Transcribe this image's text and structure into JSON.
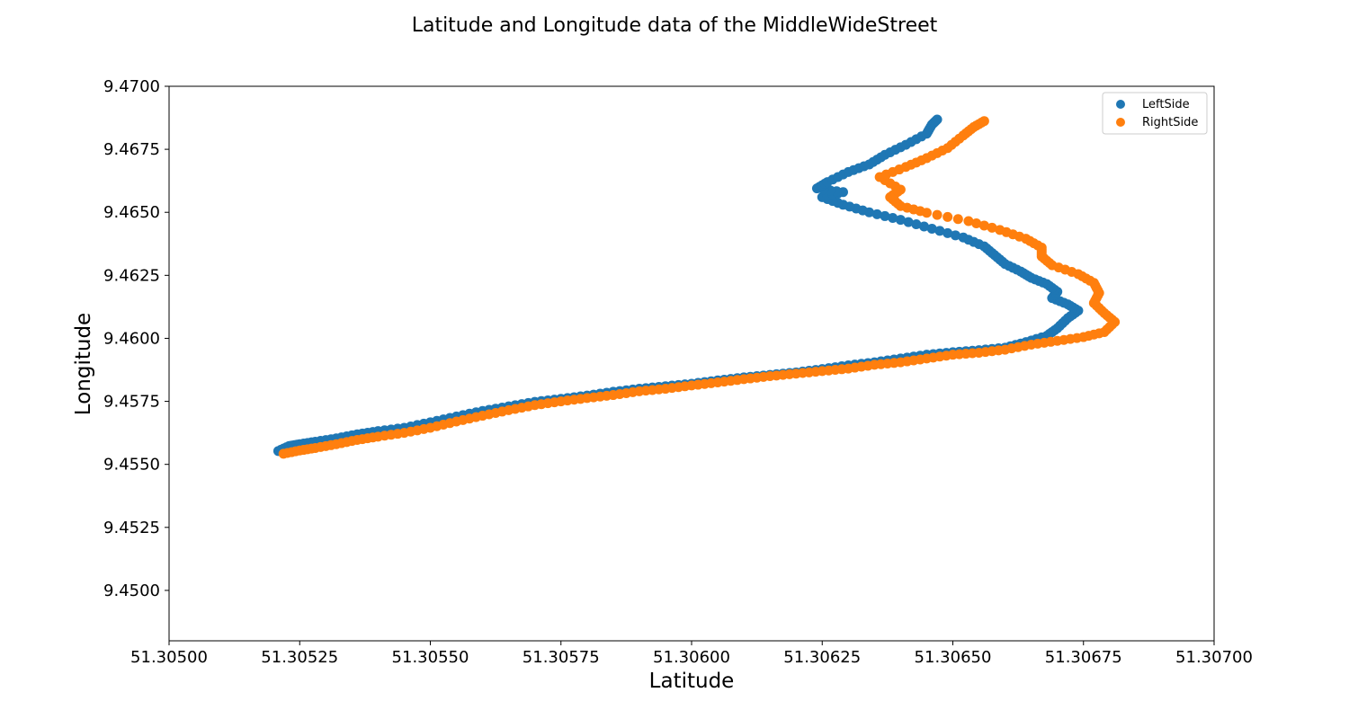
{
  "chart_data": {
    "type": "scatter",
    "title": "Latitude and Longitude data of the MiddleWideStreet",
    "xlabel": "Latitude",
    "ylabel": "Longitude",
    "xlim": [
      51.305,
      51.307
    ],
    "ylim": [
      9.448,
      9.47
    ],
    "x_ticks": [
      51.305,
      51.30525,
      51.3055,
      51.30575,
      51.306,
      51.30625,
      51.3065,
      51.30675,
      51.307
    ],
    "x_tick_labels": [
      "51.30500",
      "51.30525",
      "51.30550",
      "51.30575",
      "51.30600",
      "51.30625",
      "51.30650",
      "51.30675",
      "51.30700"
    ],
    "y_ticks": [
      9.45,
      9.4525,
      9.455,
      9.4575,
      9.46,
      9.4625,
      9.465,
      9.4675,
      9.47
    ],
    "y_tick_labels": [
      "9.4500",
      "9.4525",
      "9.4550",
      "9.4575",
      "9.4600",
      "9.4625",
      "9.4650",
      "9.4675",
      "9.4700"
    ],
    "grid": false,
    "legend_position": "top-right",
    "series": [
      {
        "name": "LeftSide",
        "color": "#1f77b4",
        "points": [
          [
            51.305209,
            9.45553
          ],
          [
            51.30523,
            9.45573
          ],
          [
            51.30525,
            9.4558
          ],
          [
            51.30528,
            9.4559
          ],
          [
            51.30532,
            9.45603
          ],
          [
            51.30536,
            9.45619
          ],
          [
            51.3054,
            9.45632
          ],
          [
            51.30545,
            9.45645
          ],
          [
            51.3055,
            9.45667
          ],
          [
            51.30555,
            9.4569
          ],
          [
            51.3056,
            9.45712
          ],
          [
            51.30565,
            9.4573
          ],
          [
            51.3057,
            9.45748
          ],
          [
            51.30575,
            9.4576
          ],
          [
            51.3058,
            9.45773
          ],
          [
            51.30585,
            9.45788
          ],
          [
            51.3059,
            9.458
          ],
          [
            51.30595,
            9.4581
          ],
          [
            51.306,
            9.4582
          ],
          [
            51.30605,
            9.45833
          ],
          [
            51.3061,
            9.45845
          ],
          [
            51.30615,
            9.45855
          ],
          [
            51.3062,
            9.45865
          ],
          [
            51.30625,
            9.45878
          ],
          [
            51.3063,
            9.45893
          ],
          [
            51.30635,
            9.45905
          ],
          [
            51.3064,
            9.4592
          ],
          [
            51.30645,
            9.45935
          ],
          [
            51.3065,
            9.45945
          ],
          [
            51.30655,
            9.45953
          ],
          [
            51.3066,
            9.45963
          ],
          [
            51.30664,
            9.45985
          ],
          [
            51.30668,
            9.4601
          ],
          [
            51.3067,
            9.4604
          ],
          [
            51.30672,
            9.4608
          ],
          [
            51.30674,
            9.4611
          ],
          [
            51.30672,
            9.46135
          ],
          [
            51.30669,
            9.4616
          ],
          [
            51.3067,
            9.46185
          ],
          [
            51.30668,
            9.46215
          ],
          [
            51.30665,
            9.4624
          ],
          [
            51.30663,
            9.46265
          ],
          [
            51.3066,
            9.46295
          ],
          [
            51.30658,
            9.4633
          ],
          [
            51.30656,
            9.46365
          ],
          [
            51.30652,
            9.464
          ],
          [
            51.30646,
            9.46435
          ],
          [
            51.3064,
            9.4647
          ],
          [
            51.30634,
            9.465
          ],
          [
            51.30629,
            9.4653
          ],
          [
            51.30625,
            9.4656
          ],
          [
            51.30629,
            9.4658
          ],
          [
            51.30624,
            9.46595
          ],
          [
            51.30626,
            9.4662
          ],
          [
            51.3063,
            9.4666
          ],
          [
            51.30634,
            9.4669
          ],
          [
            51.30637,
            9.46728
          ],
          [
            51.30641,
            9.46768
          ],
          [
            51.30645,
            9.46812
          ],
          [
            51.30646,
            9.46848
          ],
          [
            51.30647,
            9.46868
          ]
        ]
      },
      {
        "name": "RightSide",
        "color": "#ff7f0e",
        "points": [
          [
            51.305219,
            9.45542
          ],
          [
            51.30525,
            9.45555
          ],
          [
            51.30528,
            9.45565
          ],
          [
            51.30532,
            9.4558
          ],
          [
            51.30536,
            9.45597
          ],
          [
            51.3054,
            9.4561
          ],
          [
            51.30545,
            9.45625
          ],
          [
            51.3055,
            9.45645
          ],
          [
            51.30555,
            9.4567
          ],
          [
            51.3056,
            9.45693
          ],
          [
            51.30565,
            9.45715
          ],
          [
            51.3057,
            9.45735
          ],
          [
            51.30575,
            9.4575
          ],
          [
            51.3058,
            9.45763
          ],
          [
            51.30585,
            9.45775
          ],
          [
            51.3059,
            9.4579
          ],
          [
            51.30595,
            9.458
          ],
          [
            51.306,
            9.45813
          ],
          [
            51.30605,
            9.45825
          ],
          [
            51.3061,
            9.45838
          ],
          [
            51.30615,
            9.4585
          ],
          [
            51.3062,
            9.4586
          ],
          [
            51.30625,
            9.4587
          ],
          [
            51.3063,
            9.4588
          ],
          [
            51.30635,
            9.45895
          ],
          [
            51.3064,
            9.45905
          ],
          [
            51.30645,
            9.4592
          ],
          [
            51.3065,
            9.45935
          ],
          [
            51.30655,
            9.45943
          ],
          [
            51.3066,
            9.45955
          ],
          [
            51.30665,
            9.45975
          ],
          [
            51.3067,
            9.4599
          ],
          [
            51.30675,
            9.46005
          ],
          [
            51.30679,
            9.46025
          ],
          [
            51.30681,
            9.46065
          ],
          [
            51.30679,
            9.461
          ],
          [
            51.30677,
            9.4614
          ],
          [
            51.30678,
            9.4618
          ],
          [
            51.30677,
            9.4622
          ],
          [
            51.30674,
            9.46255
          ],
          [
            51.30669,
            9.4629
          ],
          [
            51.30667,
            9.46325
          ],
          [
            51.30667,
            9.4636
          ],
          [
            51.30664,
            9.46395
          ],
          [
            51.30659,
            9.4643
          ],
          [
            51.30653,
            9.46465
          ],
          [
            51.30645,
            9.46498
          ],
          [
            51.3064,
            9.46525
          ],
          [
            51.30638,
            9.4656
          ],
          [
            51.3064,
            9.4659
          ],
          [
            51.30636,
            9.4664
          ],
          [
            51.30641,
            9.4668
          ],
          [
            51.30645,
            9.46715
          ],
          [
            51.30649,
            9.46755
          ],
          [
            51.30652,
            9.46805
          ],
          [
            51.30654,
            9.46838
          ],
          [
            51.30656,
            9.46862
          ]
        ]
      }
    ]
  }
}
